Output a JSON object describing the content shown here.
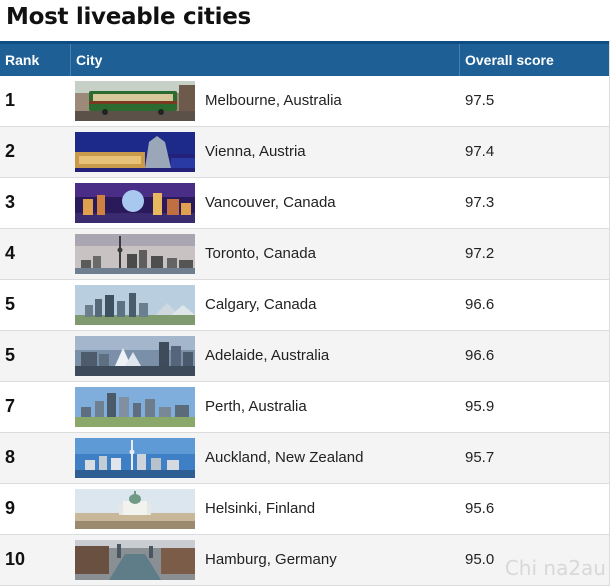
{
  "chart_data": {
    "type": "table",
    "title": "Most liveable cities",
    "columns": [
      "Rank",
      "City",
      "Overall score"
    ],
    "rows": [
      {
        "rank": "1",
        "city": "Melbourne, Australia",
        "score": "97.5",
        "photo": "melbourne-tram-photo"
      },
      {
        "rank": "2",
        "city": "Vienna, Austria",
        "score": "97.4",
        "photo": "vienna-statue-night-photo"
      },
      {
        "rank": "3",
        "city": "Vancouver, Canada",
        "score": "97.3",
        "photo": "vancouver-night-skyline-photo"
      },
      {
        "rank": "4",
        "city": "Toronto, Canada",
        "score": "97.2",
        "photo": "toronto-skyline-photo"
      },
      {
        "rank": "5",
        "city": "Calgary, Canada",
        "score": "96.6",
        "photo": "calgary-skyline-photo"
      },
      {
        "rank": "5",
        "city": "Adelaide, Australia",
        "score": "96.6",
        "photo": "adelaide-fountain-photo"
      },
      {
        "rank": "7",
        "city": "Perth, Australia",
        "score": "95.9",
        "photo": "perth-skyline-photo"
      },
      {
        "rank": "8",
        "city": "Auckland, New Zealand",
        "score": "95.7",
        "photo": "auckland-skyline-photo"
      },
      {
        "rank": "9",
        "city": "Helsinki, Finland",
        "score": "95.6",
        "photo": "helsinki-cathedral-photo"
      },
      {
        "rank": "10",
        "city": "Hamburg, Germany",
        "score": "95.0",
        "photo": "hamburg-canal-photo"
      }
    ]
  },
  "colors": {
    "header": "#1e5f96",
    "header_text": "#ffffff",
    "row_alt": "#f4f4f4"
  },
  "watermark": "Chi na2au"
}
